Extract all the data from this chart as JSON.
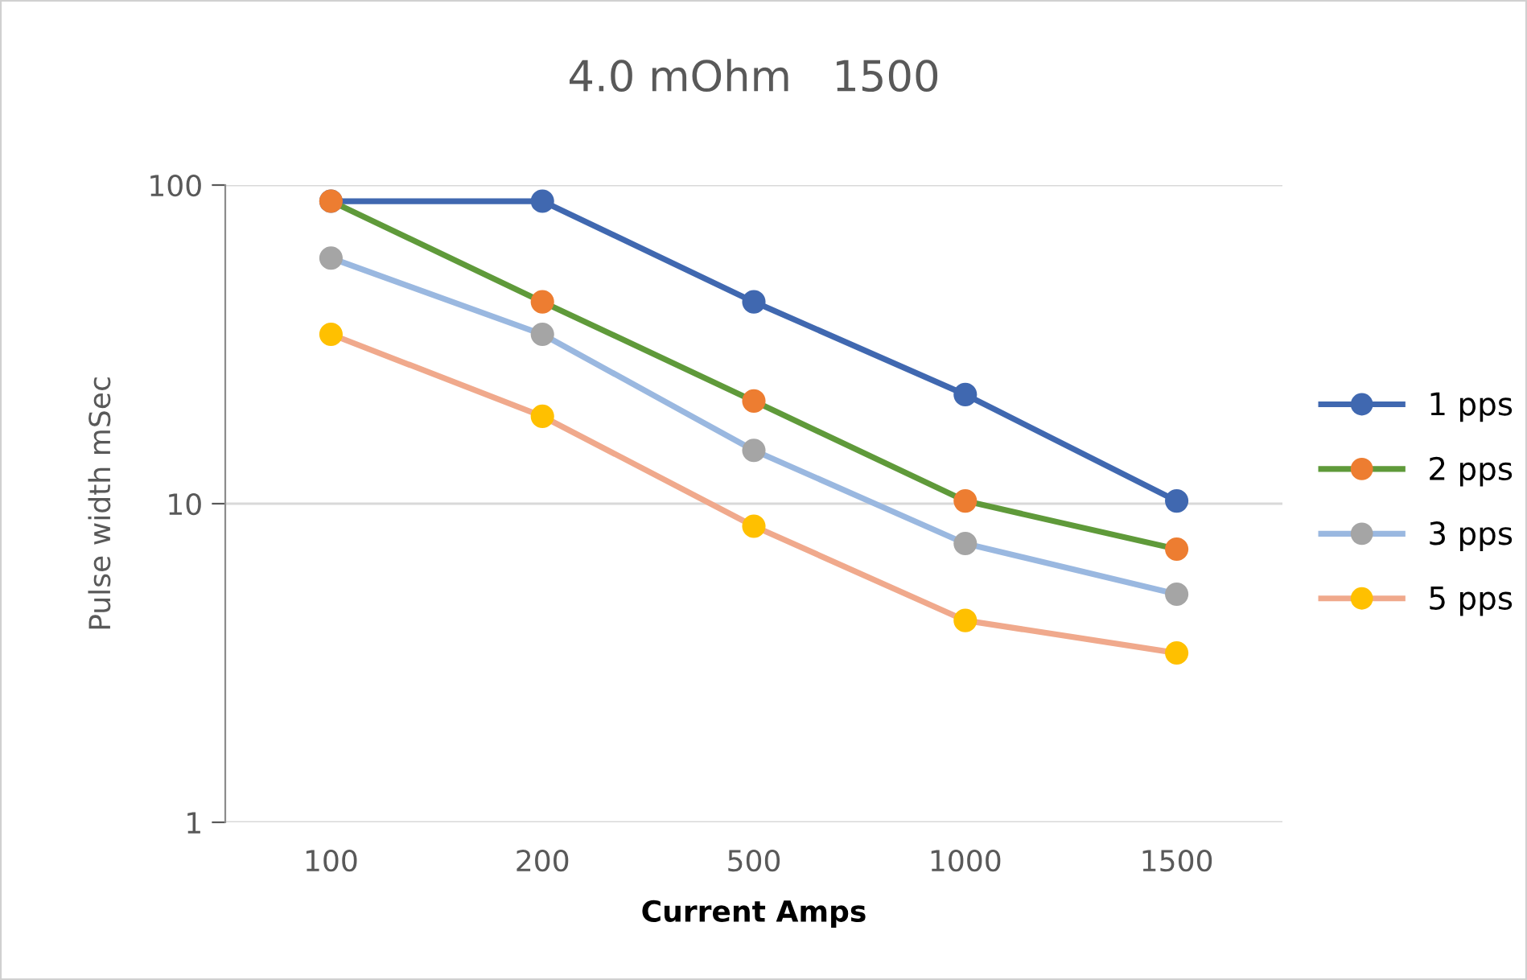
{
  "chart_data": {
    "type": "line",
    "title": "4.0 mOhm   1500",
    "xlabel": "Current Amps",
    "ylabel": "Pulse width mSec",
    "categories": [
      "100",
      "200",
      "500",
      "1000",
      "1500"
    ],
    "series": [
      {
        "name": "1 pps",
        "color": "#4068b0",
        "colors": [
          "#4068b0",
          "#4068b0",
          "#4068b0",
          "#4068b0",
          "#4068b0"
        ],
        "values": [
          89,
          89,
          43,
          22,
          10.2
        ]
      },
      {
        "name": "2 pps",
        "color": "#5f9a3a",
        "colors": [
          "#ed7d31",
          "#ed7d31",
          "#ed7d31",
          "#ed7d31",
          "#ed7d31"
        ],
        "values": [
          89,
          43,
          21,
          10.2,
          7.2
        ]
      },
      {
        "name": "3 pps",
        "color": "#9ab8e0",
        "colors": [
          "#a5a5a5",
          "#a5a5a5",
          "#a5a5a5",
          "#a5a5a5",
          "#a5a5a5"
        ],
        "values": [
          59,
          34,
          14.7,
          7.5,
          5.2
        ]
      },
      {
        "name": "5 pps",
        "color": "#f0a98c",
        "colors": [
          "#ffc000",
          "#ffc000",
          "#ffc000",
          "#ffc000",
          "#ffc000"
        ],
        "values": [
          34,
          18.8,
          8.5,
          4.3,
          3.4
        ]
      }
    ],
    "log": true,
    "ylim": [
      1,
      100
    ],
    "yticks": [
      1,
      10,
      100
    ],
    "grid": "y",
    "legend": "right",
    "marker": "circle",
    "line_style": "solid"
  }
}
